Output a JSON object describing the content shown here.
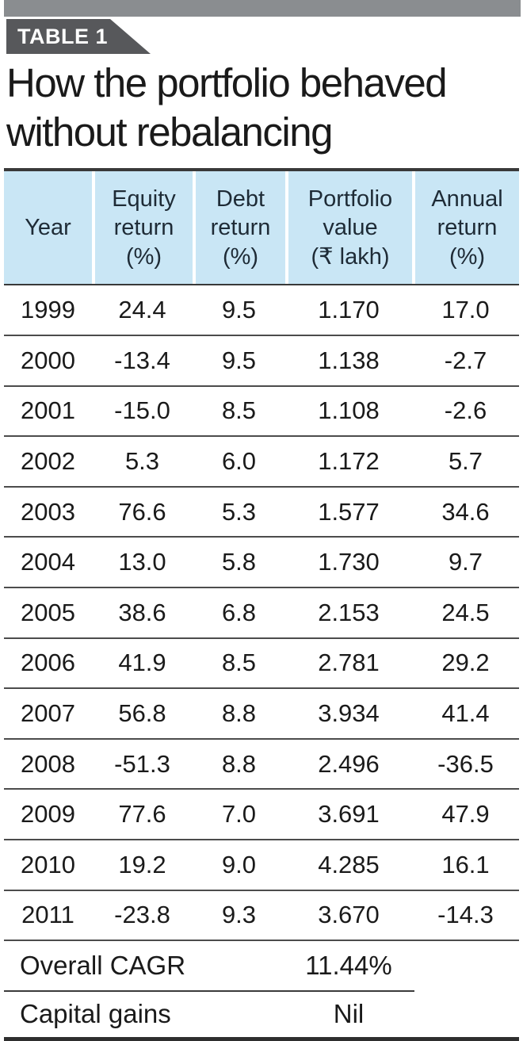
{
  "badge": {
    "label": "TABLE 1"
  },
  "title": {
    "text": "How the portfolio behaved\nwithout rebalancing"
  },
  "table": {
    "header": [
      "Year",
      "Equity\nreturn\n(%)",
      "Debt\nreturn\n(%)",
      "Portfolio\nvalue\n(₹ lakh)",
      "Annual\nreturn\n(%)"
    ],
    "rows": [
      [
        "1999",
        "24.4",
        "9.5",
        "1.170",
        "17.0"
      ],
      [
        "2000",
        "-13.4",
        "9.5",
        "1.138",
        "-2.7"
      ],
      [
        "2001",
        "-15.0",
        "8.5",
        "1.108",
        "-2.6"
      ],
      [
        "2002",
        "5.3",
        "6.0",
        "1.172",
        "5.7"
      ],
      [
        "2003",
        "76.6",
        "5.3",
        "1.577",
        "34.6"
      ],
      [
        "2004",
        "13.0",
        "5.8",
        "1.730",
        "9.7"
      ],
      [
        "2005",
        "38.6",
        "6.8",
        "2.153",
        "24.5"
      ],
      [
        "2006",
        "41.9",
        "8.5",
        "2.781",
        "29.2"
      ],
      [
        "2007",
        "56.8",
        "8.8",
        "3.934",
        "41.4"
      ],
      [
        "2008",
        "-51.3",
        "8.8",
        "2.496",
        "-36.5"
      ],
      [
        "2009",
        "77.6",
        "7.0",
        "3.691",
        "47.9"
      ],
      [
        "2010",
        "19.2",
        "9.0",
        "4.285",
        "16.1"
      ],
      [
        "2011",
        "-23.8",
        "9.3",
        "3.670",
        "-14.3"
      ]
    ],
    "footer": [
      {
        "label": "Overall CAGR",
        "value": "11.44%"
      },
      {
        "label": "Capital gains",
        "value": "Nil"
      }
    ]
  },
  "chart_data": {
    "type": "table",
    "table_tag": "TABLE 1",
    "title": "How the portfolio behaved without rebalancing",
    "columns": [
      "Year",
      "Equity return (%)",
      "Debt return (%)",
      "Portfolio value (₹ lakh)",
      "Annual return (%)"
    ],
    "rows": [
      [
        1999,
        24.4,
        9.5,
        1.17,
        17.0
      ],
      [
        2000,
        -13.4,
        9.5,
        1.138,
        -2.7
      ],
      [
        2001,
        -15.0,
        8.5,
        1.108,
        -2.6
      ],
      [
        2002,
        5.3,
        6.0,
        1.172,
        5.7
      ],
      [
        2003,
        76.6,
        5.3,
        1.577,
        34.6
      ],
      [
        2004,
        13.0,
        5.8,
        1.73,
        9.7
      ],
      [
        2005,
        38.6,
        6.8,
        2.153,
        24.5
      ],
      [
        2006,
        41.9,
        8.5,
        2.781,
        29.2
      ],
      [
        2007,
        56.8,
        8.8,
        3.934,
        41.4
      ],
      [
        2008,
        -51.3,
        8.8,
        2.496,
        -36.5
      ],
      [
        2009,
        77.6,
        7.0,
        3.691,
        47.9
      ],
      [
        2010,
        19.2,
        9.0,
        4.285,
        16.1
      ],
      [
        2011,
        -23.8,
        9.3,
        3.67,
        -14.3
      ]
    ],
    "summary": {
      "overall_cagr": "11.44%",
      "capital_gains": "Nil"
    }
  },
  "colors": {
    "top_bar": "#8a8d90",
    "badge_fill": "#57585b",
    "header_fill": "#c9e6f5",
    "header_text": "#1e2b36",
    "body_text": "#1a1a1a",
    "row_divider": "#4c4c4c"
  }
}
